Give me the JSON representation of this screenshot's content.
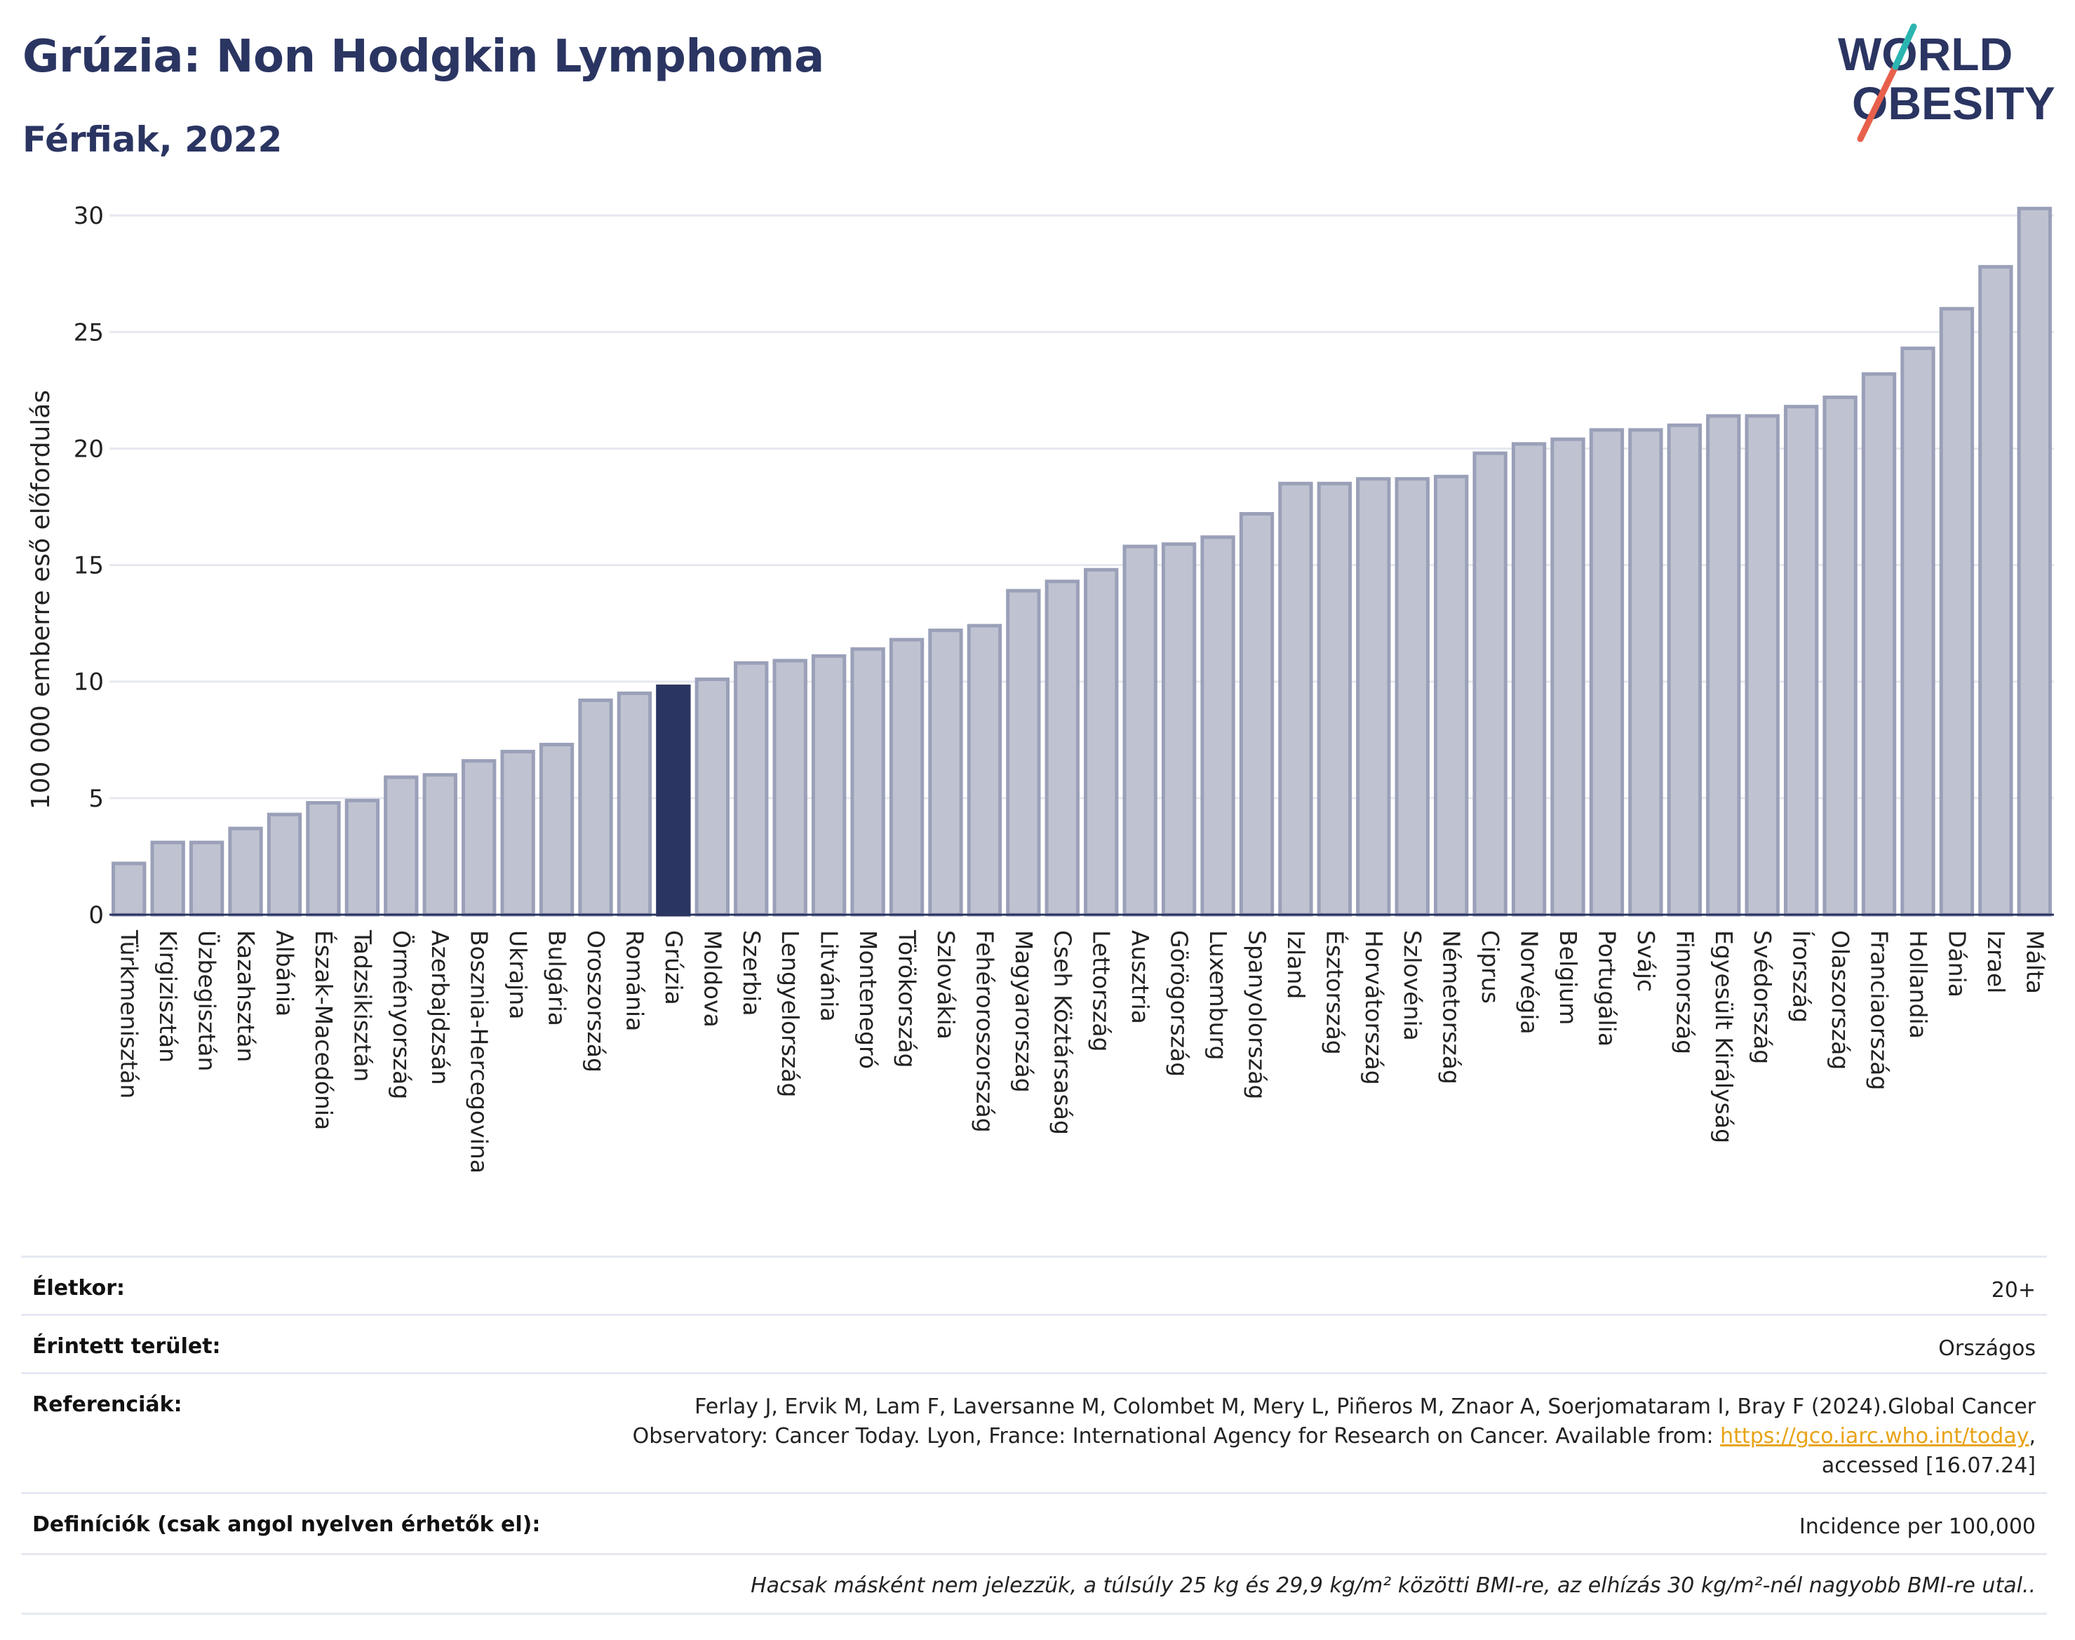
{
  "header": {
    "title": "Grúzia: Non Hodgkin Lymphoma",
    "subtitle": "Férfiak, 2022"
  },
  "logo": {
    "line1": "WORLD",
    "line2": "OBESITY"
  },
  "colors": {
    "bar": "#bfc3d1",
    "bar_stroke": "#9aa0b8",
    "highlight": "#2b3562",
    "grid": "#e6e8ef",
    "title": "#2b3562"
  },
  "chart_data": {
    "type": "bar",
    "ylabel": "100 000 emberre eső előfordulás",
    "ylim": [
      0,
      31
    ],
    "yticks": [
      0,
      5,
      10,
      15,
      20,
      25,
      30
    ],
    "grid": true,
    "highlight": "Grúzia",
    "categories": [
      "Türkmenisztán",
      "Kirgizisztán",
      "Üzbegisztán",
      "Kazahsztán",
      "Albánia",
      "Észak-Macedónia",
      "Tadzsikisztán",
      "Örményország",
      "Azerbajdzsán",
      "Bosznia-Hercegovina",
      "Ukrajna",
      "Bulgária",
      "Oroszország",
      "Románia",
      "Grúzia",
      "Moldova",
      "Szerbia",
      "Lengyelország",
      "Litvánia",
      "Montenegró",
      "Törökország",
      "Szlovákia",
      "Fehéroroszország",
      "Magyarország",
      "Cseh Köztársaság",
      "Lettország",
      "Ausztria",
      "Görögország",
      "Luxemburg",
      "Spanyolország",
      "Izland",
      "Észtország",
      "Horvátország",
      "Szlovénia",
      "Németország",
      "Ciprus",
      "Norvégia",
      "Belgium",
      "Portugália",
      "Svájc",
      "Finnország",
      "Egyesült Királyság",
      "Svédország",
      "Írország",
      "Olaszország",
      "Franciaország",
      "Hollandia",
      "Dánia",
      "Izrael",
      "Málta"
    ],
    "values": [
      2.2,
      3.1,
      3.1,
      3.7,
      4.3,
      4.8,
      4.9,
      5.9,
      6.0,
      6.6,
      7.0,
      7.3,
      9.2,
      9.5,
      9.8,
      10.1,
      10.8,
      10.9,
      11.1,
      11.4,
      11.8,
      12.2,
      12.4,
      13.9,
      14.3,
      14.8,
      15.8,
      15.9,
      16.2,
      17.2,
      18.5,
      18.5,
      18.7,
      18.7,
      18.8,
      19.8,
      20.2,
      20.4,
      20.8,
      20.8,
      21.0,
      21.4,
      21.4,
      21.8,
      22.2,
      23.2,
      24.3,
      26.0,
      27.8,
      30.3
    ]
  },
  "meta": {
    "age_label": "Életkor:",
    "age_value": "20+",
    "area_label": "Érintett terület:",
    "area_value": "Országos",
    "ref_label": "Referenciák:",
    "ref_line1": "Ferlay J, Ervik M, Lam F, Laversanne M, Colombet M, Mery L, Piñeros M, Znaor A, Soerjomataram I, Bray F (2024).Global Cancer",
    "ref_line2_pre": "Observatory: Cancer Today. Lyon, France: International Agency for Research on Cancer. Available from: ",
    "ref_link": "https://gco.iarc.who.int/today",
    "ref_line2_post": ",",
    "ref_line3": "accessed [16.07.24]",
    "def_label": "Definíciók (csak angol nyelven érhetők el):",
    "def_value": "Incidence per 100,000",
    "footnote": "Hacsak másként nem jelezzük, a túlsúly 25 kg és 29,9 kg/m² közötti BMI-re, az elhízás 30 kg/m²-nél nagyobb BMI-re utal.."
  }
}
